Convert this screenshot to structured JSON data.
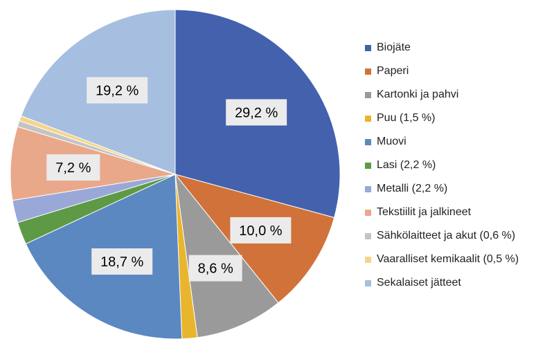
{
  "chart_data": {
    "type": "pie",
    "title": "",
    "start_angle_deg": 0,
    "direction": "clockwise",
    "legend_position": "right",
    "slices": [
      {
        "name": "Biojäte",
        "value": 29.2,
        "label": "29,2 %",
        "color": "#4461ad"
      },
      {
        "name": "Paperi",
        "value": 10.0,
        "label": "10,0 %",
        "color": "#d1723a"
      },
      {
        "name": "Kartonki ja pahvi",
        "value": 8.6,
        "label": "8,6 %",
        "color": "#9a9a9a"
      },
      {
        "name": "Puu (1,5 %)",
        "value": 1.5,
        "label": "",
        "color": "#e8b52c"
      },
      {
        "name": "Muovi",
        "value": 18.7,
        "label": "18,7 %",
        "color": "#5b88c0"
      },
      {
        "name": "Lasi (2,2 %)",
        "value": 2.2,
        "label": "",
        "color": "#5e9a45"
      },
      {
        "name": "Metalli (2,2 %)",
        "value": 2.2,
        "label": "",
        "color": "#9aa8d8"
      },
      {
        "name": "Tekstiilit ja jalkineet",
        "value": 7.2,
        "label": "7,2 %",
        "color": "#eaa88a"
      },
      {
        "name": "Sähkölaitteet ja akut (0,6 %)",
        "value": 0.6,
        "label": "",
        "color": "#c4c4c4"
      },
      {
        "name": "Vaaralliset kemikaalit (0,5 %)",
        "value": 0.5,
        "label": "",
        "color": "#f5d58a"
      },
      {
        "name": "Sekalaiset jätteet",
        "value": 19.2,
        "label": "19,2 %",
        "color": "#a6bfe0"
      }
    ]
  }
}
